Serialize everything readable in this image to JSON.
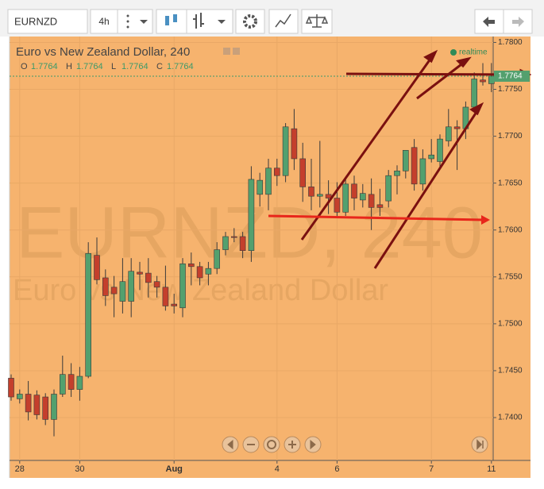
{
  "toolbar": {
    "symbol": "EURNZD",
    "interval": "4h"
  },
  "chart_data": {
    "type": "candlestick",
    "title": "Euro vs New Zealand Dollar, 240",
    "watermark": "EURNZD, 240",
    "watermark_subtitle": "Euro vs New Zealand Dollar",
    "status": "realtime",
    "ohlc_legend": [
      {
        "label": "O",
        "value": "1.7764"
      },
      {
        "label": "H",
        "value": "1.7764"
      },
      {
        "label": "L",
        "value": "1.7764"
      },
      {
        "label": "C",
        "value": "1.7764"
      }
    ],
    "last_price_label": "1.7764",
    "categories": [
      null,
      "28",
      null,
      null,
      null,
      null,
      null,
      null,
      "30",
      null,
      null,
      null,
      null,
      null,
      null,
      null,
      null,
      null,
      null,
      "Aug",
      null,
      null,
      null,
      null,
      null,
      null,
      null,
      null,
      null,
      null,
      null,
      "4",
      null,
      null,
      null,
      null,
      null,
      null,
      "6",
      null,
      null,
      null,
      null,
      null,
      null,
      null,
      null,
      null,
      null,
      "7",
      null,
      null,
      null,
      null,
      null,
      null,
      "11"
    ],
    "open": [
      1.7442,
      1.742,
      1.7425,
      1.7424,
      1.7422,
      1.7398,
      1.7425,
      1.7446,
      1.743,
      1.7444,
      1.7573,
      1.7549,
      1.7539,
      1.7524,
      1.7524,
      1.7555,
      1.7554,
      1.7545,
      1.7539,
      1.7521,
      1.7517,
      1.7564,
      1.7561,
      1.7553,
      1.7559,
      1.7579,
      1.7593,
      1.7593,
      1.7578,
      1.7638,
      1.7638,
      1.7666,
      1.7658,
      1.7708,
      1.7676,
      1.7646,
      1.7636,
      1.7638,
      1.7634,
      1.7619,
      1.7649,
      1.7632,
      1.7638,
      1.7627,
      1.7631,
      1.7658,
      1.7663,
      1.7688,
      1.7649,
      1.7676,
      1.7673,
      1.7695,
      1.771,
      1.7708,
      1.7731,
      1.776,
      1.7756
    ],
    "high": [
      1.7446,
      1.743,
      1.7439,
      1.7429,
      1.7426,
      1.743,
      1.7466,
      1.7458,
      1.7454,
      1.7587,
      1.7592,
      1.7558,
      1.7551,
      1.757,
      1.757,
      1.7566,
      1.757,
      1.7551,
      1.7562,
      1.7532,
      1.757,
      1.7576,
      1.7566,
      1.7566,
      1.7587,
      1.7598,
      1.7602,
      1.7598,
      1.7668,
      1.7661,
      1.7676,
      1.7676,
      1.7714,
      1.7729,
      1.7693,
      1.7676,
      1.7695,
      1.7653,
      1.7651,
      1.7655,
      1.7658,
      1.7649,
      1.7655,
      1.7644,
      1.7664,
      1.7669,
      1.7685,
      1.7697,
      1.7686,
      1.7697,
      1.7702,
      1.7729,
      1.7717,
      1.7737,
      1.7768,
      1.7778,
      1.7778
    ],
    "low": [
      1.7418,
      1.7415,
      1.7397,
      1.7398,
      1.7392,
      1.738,
      1.7422,
      1.7422,
      1.7418,
      1.7442,
      1.7542,
      1.7519,
      1.7507,
      1.7511,
      1.7507,
      1.7536,
      1.7528,
      1.7528,
      1.7514,
      1.7511,
      1.7507,
      1.7541,
      1.7541,
      1.7541,
      1.7553,
      1.7573,
      1.7587,
      1.757,
      1.7566,
      1.7625,
      1.7621,
      1.7647,
      1.7651,
      1.7664,
      1.763,
      1.7621,
      1.7624,
      1.7617,
      1.7613,
      1.7615,
      1.7621,
      1.7624,
      1.76,
      1.7615,
      1.7624,
      1.7638,
      1.7655,
      1.7642,
      1.7642,
      1.7672,
      1.7666,
      1.7689,
      1.7664,
      1.7697,
      1.7727,
      1.7754,
      1.7747
    ],
    "close": [
      1.7422,
      1.7425,
      1.7406,
      1.7403,
      1.7398,
      1.7425,
      1.7446,
      1.743,
      1.7444,
      1.7575,
      1.7547,
      1.753,
      1.7532,
      1.7545,
      1.7556,
      1.7553,
      1.7544,
      1.7539,
      1.7519,
      1.7519,
      1.7564,
      1.7561,
      1.7549,
      1.7559,
      1.7579,
      1.7593,
      1.7592,
      1.7578,
      1.7654,
      1.7653,
      1.7666,
      1.7658,
      1.771,
      1.7676,
      1.7646,
      1.7636,
      1.7638,
      1.7634,
      1.7619,
      1.7649,
      1.7634,
      1.7639,
      1.7624,
      1.7624,
      1.7658,
      1.7663,
      1.7685,
      1.7649,
      1.7676,
      1.768,
      1.7697,
      1.771,
      1.7708,
      1.7731,
      1.7761,
      1.7758,
      1.7764
    ],
    "up_color": "#53a06e",
    "down_color": "#c43f2c",
    "ylim": [
      1.7356,
      1.7808
    ],
    "yticks": [
      {
        "value": 1.74,
        "label": "1.7400"
      },
      {
        "value": 1.745,
        "label": "1.7450"
      },
      {
        "value": 1.75,
        "label": "1.7500"
      },
      {
        "value": 1.755,
        "label": "1.7550"
      },
      {
        "value": 1.76,
        "label": "1.7600"
      },
      {
        "value": 1.765,
        "label": "1.7650"
      },
      {
        "value": 1.77,
        "label": "1.7700"
      },
      {
        "value": 1.775,
        "label": "1.7750"
      },
      {
        "value": 1.78,
        "label": "1.7800"
      }
    ],
    "grid": true
  }
}
